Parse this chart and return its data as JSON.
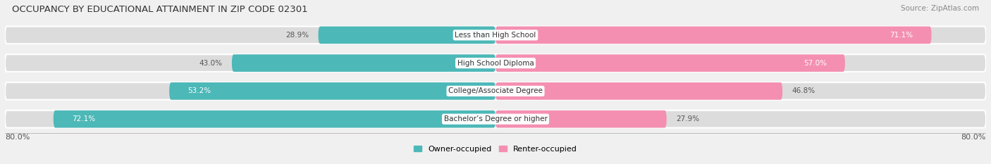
{
  "title": "OCCUPANCY BY EDUCATIONAL ATTAINMENT IN ZIP CODE 02301",
  "source": "Source: ZipAtlas.com",
  "categories": [
    "Less than High School",
    "High School Diploma",
    "College/Associate Degree",
    "Bachelor’s Degree or higher"
  ],
  "owner_pct": [
    28.9,
    43.0,
    53.2,
    72.1
  ],
  "renter_pct": [
    71.1,
    57.0,
    46.8,
    27.9
  ],
  "owner_color": "#4db8b8",
  "renter_color": "#f48fb1",
  "axis_max": 80.0,
  "axis_label_left": "80.0%",
  "axis_label_right": "80.0%",
  "legend_owner": "Owner-occupied",
  "legend_renter": "Renter-occupied",
  "title_fontsize": 9.5,
  "source_fontsize": 7.5,
  "bar_label_fontsize": 7.5,
  "category_fontsize": 7.5,
  "bg_color": "#f0f0f0",
  "bar_bg_color": "#dcdcdc",
  "bar_height": 0.62,
  "bar_spacing": 1.0
}
